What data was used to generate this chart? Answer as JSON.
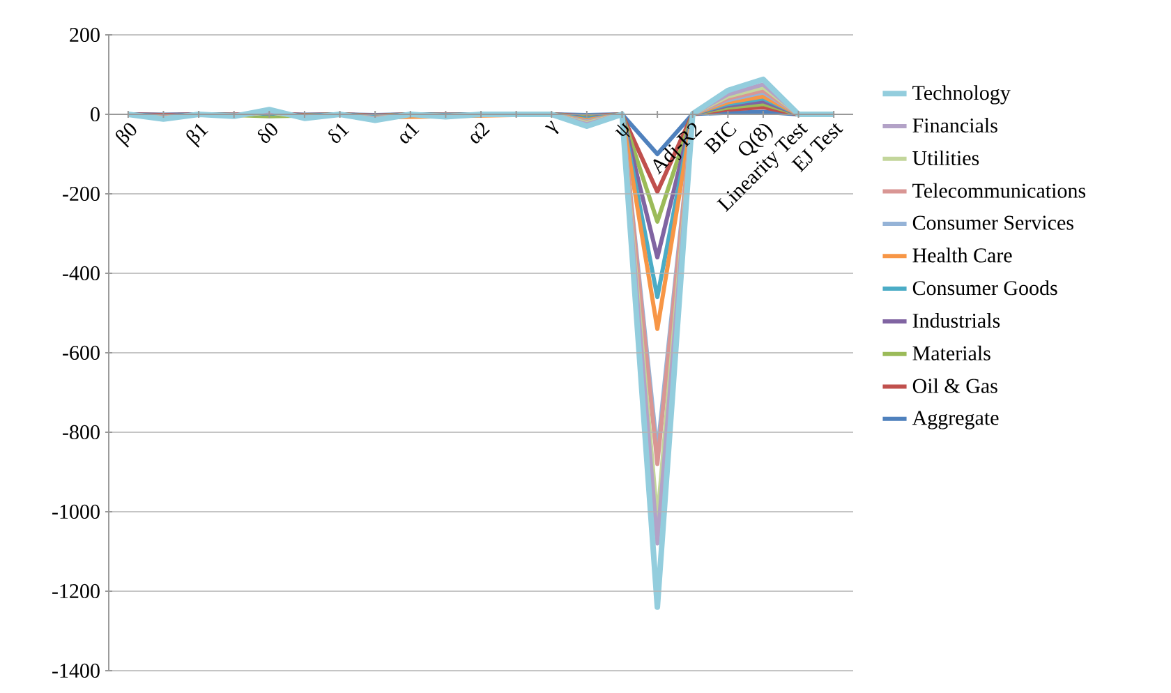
{
  "chart_data": {
    "type": "line",
    "categories": [
      "β0",
      null,
      "β1",
      null,
      "δ0",
      null,
      "δ1",
      null,
      "α1",
      null,
      "α2",
      null,
      "γ",
      null,
      "ψ",
      null,
      "Adj-R2",
      "BIC",
      "Q(8)",
      "Linearity Test",
      "EJ Test"
    ],
    "ylim": [
      -1400,
      200
    ],
    "yticks": [
      -1400,
      -1200,
      -1000,
      -800,
      -600,
      -400,
      -200,
      0,
      200
    ],
    "grid": "y",
    "legend": "right",
    "series": [
      {
        "name": "Technology",
        "color": "#93cddd",
        "values": [
          0,
          -12,
          0,
          -5,
          12,
          -10,
          0,
          -15,
          0,
          -6,
          0,
          0,
          0,
          -30,
          0,
          -1240,
          1,
          60,
          88,
          0,
          0
        ]
      },
      {
        "name": "Financials",
        "color": "#b3a2c7",
        "values": [
          0,
          -10,
          0,
          -4,
          8,
          -8,
          0,
          -12,
          0,
          -5,
          0,
          0,
          0,
          -25,
          0,
          -1080,
          1,
          50,
          75,
          0,
          0
        ]
      },
      {
        "name": "Utilities",
        "color": "#c3d69b",
        "values": [
          0,
          -9,
          0,
          -4,
          5,
          -8,
          0,
          -11,
          0,
          -4,
          0,
          0,
          0,
          -22,
          0,
          -1020,
          1,
          45,
          68,
          0,
          0
        ]
      },
      {
        "name": "Telecommunications",
        "color": "#d99694",
        "values": [
          0,
          -8,
          0,
          -3,
          6,
          -7,
          0,
          -10,
          0,
          -4,
          0,
          0,
          0,
          -20,
          0,
          -880,
          1,
          40,
          60,
          0,
          0
        ]
      },
      {
        "name": "Consumer Services",
        "color": "#95b3d7",
        "values": [
          0,
          -7,
          0,
          -3,
          5,
          -6,
          0,
          -9,
          0,
          -3,
          0,
          0,
          0,
          -18,
          0,
          -850,
          1,
          36,
          55,
          0,
          0
        ]
      },
      {
        "name": "Health Care",
        "color": "#f79646",
        "values": [
          null,
          null,
          null,
          null,
          null,
          null,
          null,
          -8,
          null,
          null,
          null,
          null,
          0,
          -15,
          0,
          -540,
          1,
          30,
          45,
          0,
          null
        ]
      },
      {
        "name": "Consumer Goods",
        "color": "#4bacc6",
        "values": [
          0,
          -5,
          0,
          -2,
          3,
          -4,
          0,
          -7,
          0,
          -2,
          0,
          0,
          0,
          -12,
          0,
          -460,
          1,
          26,
          40,
          0,
          0
        ]
      },
      {
        "name": "Industrials",
        "color": "#8064a2",
        "values": [
          0,
          -4,
          0,
          -2,
          3,
          -4,
          0,
          -6,
          0,
          -2,
          0,
          0,
          0,
          -10,
          0,
          -360,
          1,
          22,
          33,
          0,
          0
        ]
      },
      {
        "name": "Materials",
        "color": "#9bbb59",
        "values": [
          null,
          null,
          0,
          -2,
          -5,
          -3,
          0,
          -5,
          0,
          -2,
          0,
          0,
          0,
          -8,
          0,
          -270,
          1,
          17,
          26,
          0,
          0
        ]
      },
      {
        "name": "Oil & Gas",
        "color": "#c0504d",
        "values": [
          0,
          -2,
          0,
          -1,
          2,
          -2,
          0,
          -3,
          0,
          -1,
          0,
          0,
          0,
          -5,
          0,
          -195,
          1,
          12,
          18,
          0,
          0
        ]
      },
      {
        "name": "Aggregate",
        "color": "#4f81bd",
        "values": [
          0,
          -1,
          0,
          -1,
          1,
          -1,
          0,
          -2,
          0,
          -1,
          0,
          0,
          0,
          -2,
          0,
          -100,
          1,
          4,
          6,
          0,
          0
        ]
      }
    ]
  }
}
